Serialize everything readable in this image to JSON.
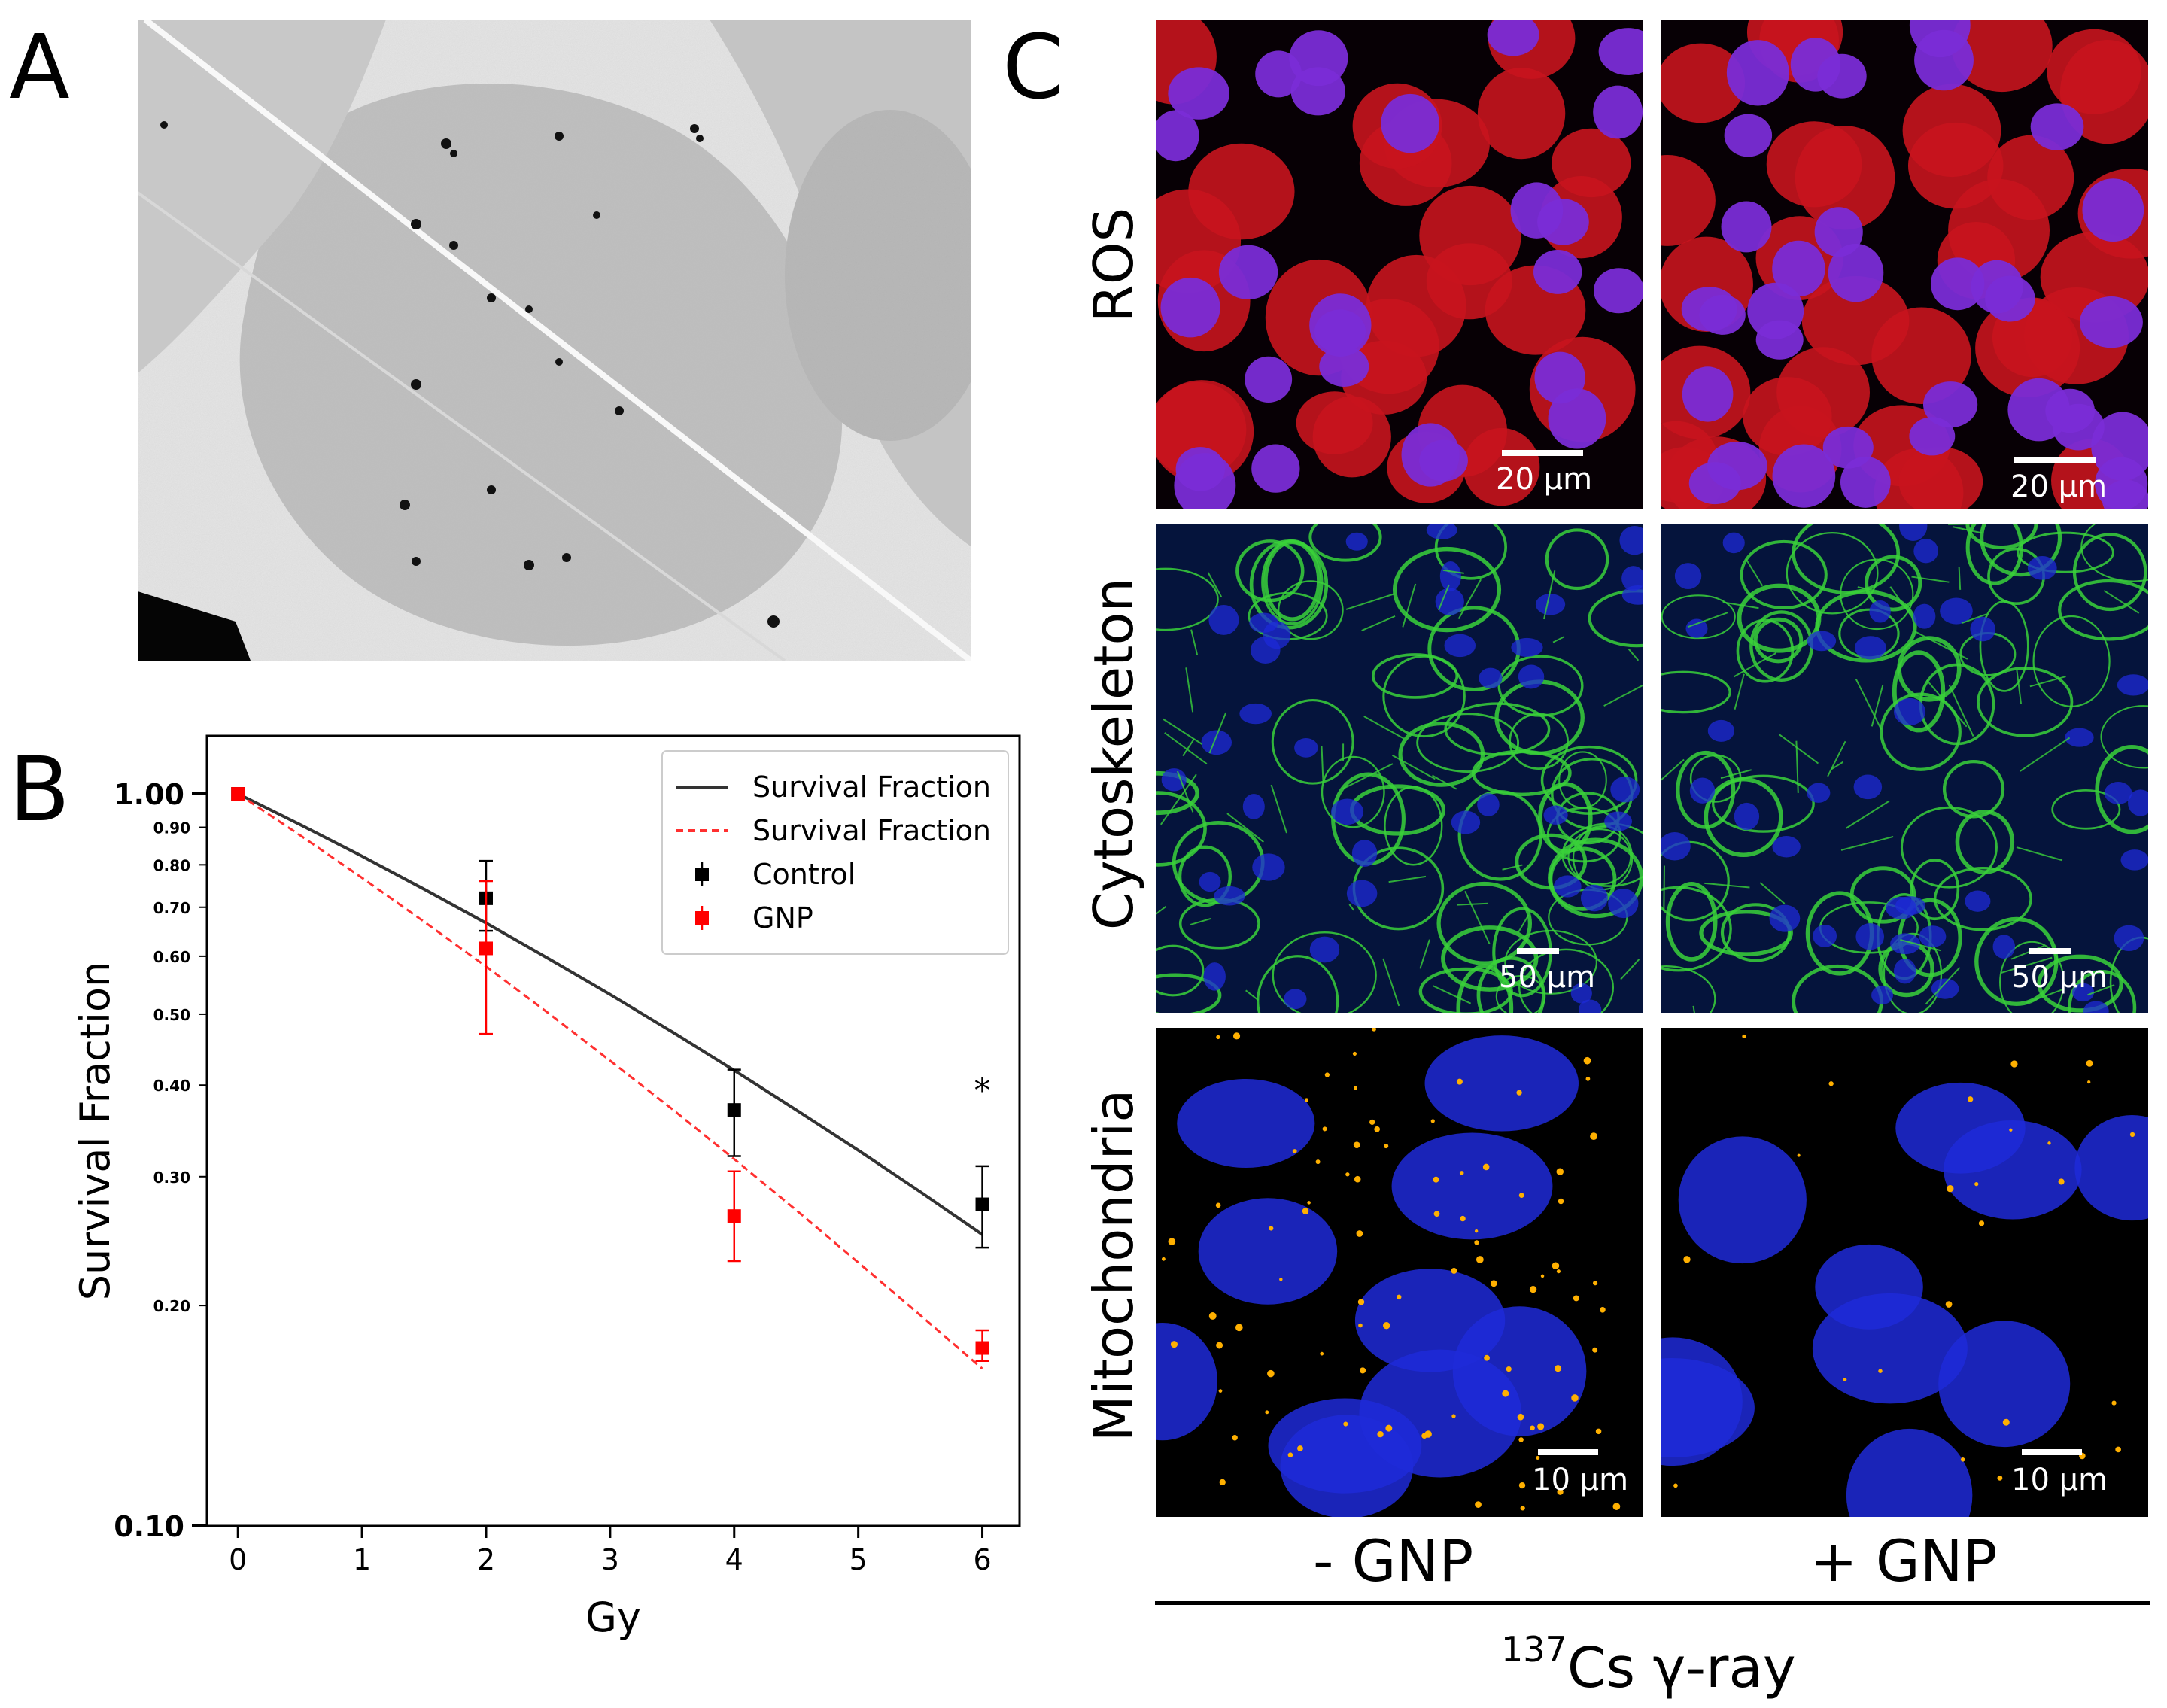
{
  "panels": {
    "a_letter": "A",
    "b_letter": "B",
    "c_letter": "C"
  },
  "microscopy": {
    "rows": [
      "ROS",
      "Cytoskeleton",
      "Mitochondria"
    ],
    "columns": [
      "- GNP",
      "+ GNP"
    ],
    "scale_bars": {
      "ros": "20 μm",
      "cyto": "50 μm",
      "mito": "10 μm"
    },
    "caption_superscript": "137",
    "caption_text": "Cs γ-ray",
    "colors": {
      "ros_cytoplasm": "#c8141e",
      "ros_nucleus": "#7a2cd6",
      "actin": "#3ad13a",
      "nucleus_blue": "#1e2ad8",
      "mitochondria": "#ffb000"
    }
  },
  "chart_data": {
    "type": "scatter",
    "xlabel": "Gy",
    "ylabel": "Survival Fraction",
    "xlim": [
      -0.25,
      6.3
    ],
    "ylim": [
      0.1,
      1.2
    ],
    "yscale": "log",
    "xticks": [
      0,
      1,
      2,
      3,
      4,
      5,
      6
    ],
    "yticks_major": [
      0.1,
      1.0
    ],
    "yticks_major_labels": [
      "0.10",
      "1.00"
    ],
    "yticks_minor": [
      0.2,
      0.3,
      0.4,
      0.5,
      0.6,
      0.7,
      0.8,
      0.9
    ],
    "yticks_minor_labels": [
      "0.20",
      "0.30",
      "0.40",
      "0.50",
      "0.60",
      "0.70",
      "0.80",
      "0.90"
    ],
    "legend_position": "top-right",
    "fits": [
      {
        "name": "Survival Fraction",
        "color": "#333333",
        "dash": "solid",
        "x": [
          0,
          0.5,
          1,
          1.5,
          2,
          2.5,
          3,
          3.5,
          4,
          4.5,
          5,
          5.5,
          6
        ],
        "y": [
          1.0,
          0.908,
          0.822,
          0.741,
          0.666,
          0.596,
          0.532,
          0.473,
          0.419,
          0.37,
          0.326,
          0.286,
          0.25
        ]
      },
      {
        "name": "Survival Fraction",
        "color": "#ff3030",
        "dash": "dashed",
        "x": [
          0,
          0.5,
          1,
          1.5,
          2,
          2.5,
          3,
          3.5,
          4,
          4.5,
          5,
          5.5,
          6
        ],
        "y": [
          1.0,
          0.878,
          0.768,
          0.669,
          0.581,
          0.502,
          0.432,
          0.371,
          0.317,
          0.27,
          0.229,
          0.194,
          0.164
        ]
      }
    ],
    "series": [
      {
        "name": "Control",
        "color": "#000000",
        "x": [
          0,
          2,
          4,
          6
        ],
        "y": [
          1.0,
          0.72,
          0.37,
          0.275
        ],
        "err_low": [
          1.0,
          0.65,
          0.32,
          0.24
        ],
        "err_high": [
          1.0,
          0.81,
          0.42,
          0.31
        ]
      },
      {
        "name": "GNP",
        "color": "#ff0000",
        "x": [
          0,
          2,
          4,
          6
        ],
        "y": [
          1.0,
          0.615,
          0.265,
          0.175
        ],
        "err_low": [
          1.0,
          0.47,
          0.23,
          0.168
        ],
        "err_high": [
          1.0,
          0.76,
          0.305,
          0.185
        ]
      }
    ],
    "annotations": [
      {
        "text": "*",
        "x": 6,
        "y": 0.4
      }
    ]
  }
}
